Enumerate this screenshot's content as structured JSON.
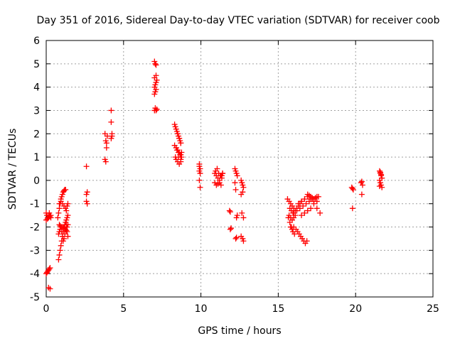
{
  "chart_data": {
    "type": "scatter",
    "title": "Day 351 of 2016, Sidereal Day-to-day VTEC variation (SDTVAR) for receiver coob",
    "xlabel": "GPS time / hours",
    "ylabel": "SDTVAR / TECUs",
    "xlim": [
      0,
      25
    ],
    "ylim": [
      -5,
      6
    ],
    "xticks": [
      0,
      5,
      10,
      15,
      20,
      25
    ],
    "yticks": [
      -5,
      -4,
      -3,
      -2,
      -1,
      0,
      1,
      2,
      3,
      4,
      5,
      6
    ],
    "grid": true,
    "marker": "+",
    "color": "#ff0000",
    "series": [
      {
        "name": "SDTVAR",
        "x": [
          0.0,
          0.05,
          0.1,
          0.15,
          0.2,
          0.25,
          0.3,
          0.0,
          0.05,
          0.1,
          0.15,
          0.2,
          0.25,
          0.0,
          0.08,
          0.15,
          0.22,
          0.3,
          0.15,
          0.25,
          0.75,
          0.8,
          0.85,
          0.9,
          0.95,
          1.0,
          1.05,
          1.1,
          1.15,
          1.2,
          1.25,
          0.8,
          0.85,
          0.9,
          0.95,
          1.0,
          1.05,
          1.1,
          1.15,
          1.2,
          1.25,
          1.3,
          1.35,
          1.4,
          0.85,
          0.95,
          1.05,
          1.15,
          1.25,
          1.3,
          1.35,
          1.4,
          0.85,
          0.9,
          1.0,
          1.1,
          1.2,
          1.3,
          1.35,
          1.4,
          0.8,
          0.85,
          0.9,
          0.95,
          1.0,
          1.05,
          1.1,
          1.15,
          1.2,
          1.25,
          1.3,
          1.35,
          1.4,
          2.6,
          2.6,
          2.65,
          2.65,
          2.6,
          3.8,
          3.85,
          3.9,
          3.9,
          3.95,
          3.8,
          3.85,
          4.2,
          4.2,
          4.25,
          4.2,
          4.25,
          7.0,
          7.05,
          7.1,
          7.15,
          7.0,
          7.05,
          7.1,
          7.0,
          7.05,
          7.1,
          7.15,
          7.0,
          7.1,
          7.0,
          7.05,
          7.1,
          8.3,
          8.35,
          8.4,
          8.45,
          8.5,
          8.55,
          8.6,
          8.65,
          8.7,
          8.3,
          8.4,
          8.5,
          8.6,
          8.7,
          8.35,
          8.45,
          8.55,
          8.65,
          8.75,
          8.5,
          8.6,
          8.7,
          8.4,
          8.5,
          8.6,
          8.7,
          8.4,
          8.55,
          8.7,
          8.75,
          9.9,
          9.9,
          9.95,
          9.9,
          9.95,
          9.9,
          9.95,
          10.9,
          11.0,
          11.1,
          11.2,
          11.3,
          11.4,
          10.95,
          11.05,
          11.15,
          11.25,
          11.35,
          10.9,
          11.0,
          11.1,
          11.2,
          11.3,
          11.35,
          11.4,
          11.85,
          11.9,
          11.95,
          11.9,
          12.2,
          12.25,
          12.3,
          12.35,
          12.2,
          12.25,
          12.3,
          12.35,
          12.25,
          12.3,
          12.6,
          12.65,
          12.7,
          12.75,
          12.6,
          12.7,
          12.65,
          12.75,
          12.6,
          12.7,
          12.75,
          15.6,
          15.7,
          15.8,
          15.9,
          16.0,
          16.1,
          16.2,
          16.3,
          16.4,
          16.5,
          15.65,
          15.75,
          15.85,
          15.95,
          16.05,
          16.15,
          16.25,
          16.35,
          16.45,
          16.55,
          16.65,
          16.75,
          16.85,
          16.0,
          16.2,
          16.4,
          16.6,
          16.8,
          17.0,
          17.2,
          17.4,
          17.6,
          16.3,
          16.5,
          16.7,
          16.9,
          17.1,
          17.3,
          17.5,
          17.7,
          16.9,
          17.0,
          17.1,
          17.2,
          17.3,
          17.4,
          17.5,
          15.7,
          15.8,
          15.9,
          16.0,
          16.1,
          15.8,
          15.9,
          16.0,
          15.75,
          15.85,
          15.95,
          16.5,
          16.7,
          16.9,
          17.1,
          17.3,
          17.5,
          19.75,
          19.8,
          19.85,
          19.8,
          20.35,
          20.4,
          20.45,
          20.4,
          21.55,
          21.6,
          21.65,
          21.7,
          21.55,
          21.6,
          21.65,
          21.7,
          21.6,
          21.65,
          21.55,
          21.7
        ],
        "y": [
          -1.4,
          -1.5,
          -1.6,
          -1.5,
          -1.4,
          -1.5,
          -1.6,
          -4.0,
          -3.95,
          -3.9,
          -3.85,
          -3.8,
          -3.75,
          -1.7,
          -1.65,
          -1.6,
          -1.55,
          -1.5,
          -4.6,
          -4.65,
          -1.6,
          -1.4,
          -1.2,
          -1.0,
          -0.8,
          -0.7,
          -0.6,
          -0.5,
          -0.45,
          -0.4,
          -0.4,
          -3.4,
          -3.2,
          -3.0,
          -2.8,
          -2.6,
          -2.4,
          -2.2,
          -2.0,
          -1.9,
          -1.8,
          -1.7,
          -1.6,
          -1.5,
          -1.0,
          -0.9,
          -1.0,
          -1.1,
          -1.2,
          -1.3,
          -1.1,
          -1.0,
          -1.9,
          -1.95,
          -2.0,
          -2.05,
          -2.1,
          -2.15,
          -2.0,
          -1.9,
          -2.3,
          -2.2,
          -2.1,
          -2.0,
          -2.2,
          -2.4,
          -2.6,
          -2.5,
          -2.3,
          -2.1,
          -1.9,
          -2.2,
          -2.4,
          0.6,
          -0.6,
          -0.5,
          -1.0,
          -0.9,
          0.9,
          0.8,
          1.4,
          1.6,
          1.9,
          2.0,
          1.7,
          2.5,
          3.0,
          1.9,
          1.8,
          2.0,
          3.0,
          3.1,
          3.0,
          3.05,
          3.7,
          3.8,
          3.9,
          4.0,
          4.1,
          4.2,
          4.3,
          4.4,
          4.5,
          5.1,
          5.0,
          4.95,
          2.4,
          2.3,
          2.2,
          2.1,
          2.0,
          1.9,
          1.8,
          1.7,
          1.6,
          1.5,
          1.4,
          1.3,
          1.2,
          1.1,
          1.0,
          1.3,
          1.2,
          1.1,
          1.0,
          2.0,
          1.8,
          1.6,
          0.9,
          0.8,
          0.7,
          0.9,
          1.4,
          1.0,
          0.8,
          1.2,
          0.7,
          0.6,
          0.5,
          0.4,
          0.3,
          0.0,
          -0.3,
          0.3,
          0.2,
          0.1,
          0.0,
          0.2,
          0.3,
          0.4,
          0.5,
          0.3,
          0.2,
          0.1,
          -0.1,
          -0.2,
          -0.15,
          -0.1,
          -0.2,
          0.2,
          0.3,
          -1.3,
          -1.35,
          -2.05,
          -2.1,
          0.5,
          0.4,
          0.3,
          0.2,
          -0.1,
          -0.4,
          -1.6,
          -1.5,
          -2.5,
          -2.45,
          0.0,
          -0.1,
          -0.2,
          -0.3,
          -0.6,
          -0.5,
          -1.4,
          -1.6,
          -2.4,
          -2.5,
          -2.6,
          -0.8,
          -0.9,
          -1.0,
          -1.1,
          -1.2,
          -1.3,
          -1.2,
          -1.1,
          -1.0,
          -0.9,
          -1.6,
          -1.8,
          -2.0,
          -2.2,
          -2.3,
          -2.1,
          -2.2,
          -2.3,
          -2.4,
          -2.5,
          -2.6,
          -2.7,
          -2.6,
          -1.4,
          -1.3,
          -1.2,
          -1.1,
          -1.0,
          -0.9,
          -0.8,
          -0.75,
          -0.7,
          -1.0,
          -0.9,
          -0.8,
          -0.7,
          -0.8,
          -0.9,
          -1.2,
          -1.4,
          -0.6,
          -0.65,
          -0.7,
          -0.75,
          -0.8,
          -0.75,
          -0.7,
          -1.5,
          -1.6,
          -1.7,
          -1.6,
          -1.5,
          -2.0,
          -2.1,
          -2.0,
          -1.2,
          -1.3,
          -1.4,
          -1.5,
          -1.4,
          -1.3,
          -1.2,
          -1.0,
          -0.9,
          -0.3,
          -0.35,
          -0.4,
          -1.2,
          -0.1,
          -0.05,
          -0.2,
          -0.6,
          0.4,
          0.3,
          0.2,
          0.1,
          0.0,
          -0.1,
          -0.2,
          -0.3,
          0.35,
          0.25,
          -0.25,
          0.1
        ]
      }
    ]
  }
}
